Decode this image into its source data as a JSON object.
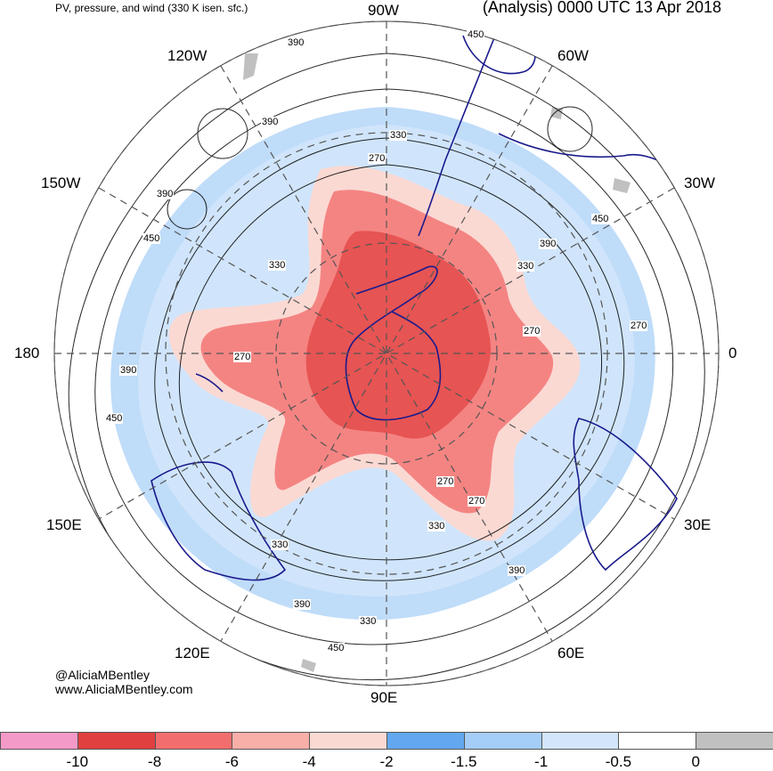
{
  "header": {
    "left_title": "PV, pressure, and wind (330 K isen. sfc.)",
    "right_title": "(Analysis) 0000 UTC 13 Apr 2018"
  },
  "longitude_labels": {
    "n": "90W",
    "nw": "120W",
    "ne": "60W",
    "wnw": "150W",
    "ene": "30W",
    "w": "180",
    "e": "0",
    "wsw": "150E",
    "ese": "30E",
    "sw": "120E",
    "se": "60E",
    "s": "90E"
  },
  "contour_labels": [
    "390",
    "450",
    "390",
    "330",
    "270",
    "390",
    "450",
    "330",
    "390",
    "330",
    "450",
    "270",
    "390",
    "450",
    "270",
    "270",
    "270",
    "330",
    "390",
    "330",
    "390",
    "330",
    "450",
    "270"
  ],
  "credit": {
    "handle": "@AliciaMBentley",
    "site": "www.AliciaMBentley.com"
  },
  "colorbar": {
    "ticks": [
      "-10",
      "-8",
      "-6",
      "-4",
      "-2",
      "-1.5",
      "-1",
      "-0.5",
      "0"
    ],
    "colors": [
      "#f49ac8",
      "#e0403f",
      "#f26e6e",
      "#f7afa8",
      "#fbd9d3",
      "#62a8f0",
      "#a4cdf7",
      "#d2e5fb",
      "#ffffff",
      "#c0c0c0"
    ]
  }
}
